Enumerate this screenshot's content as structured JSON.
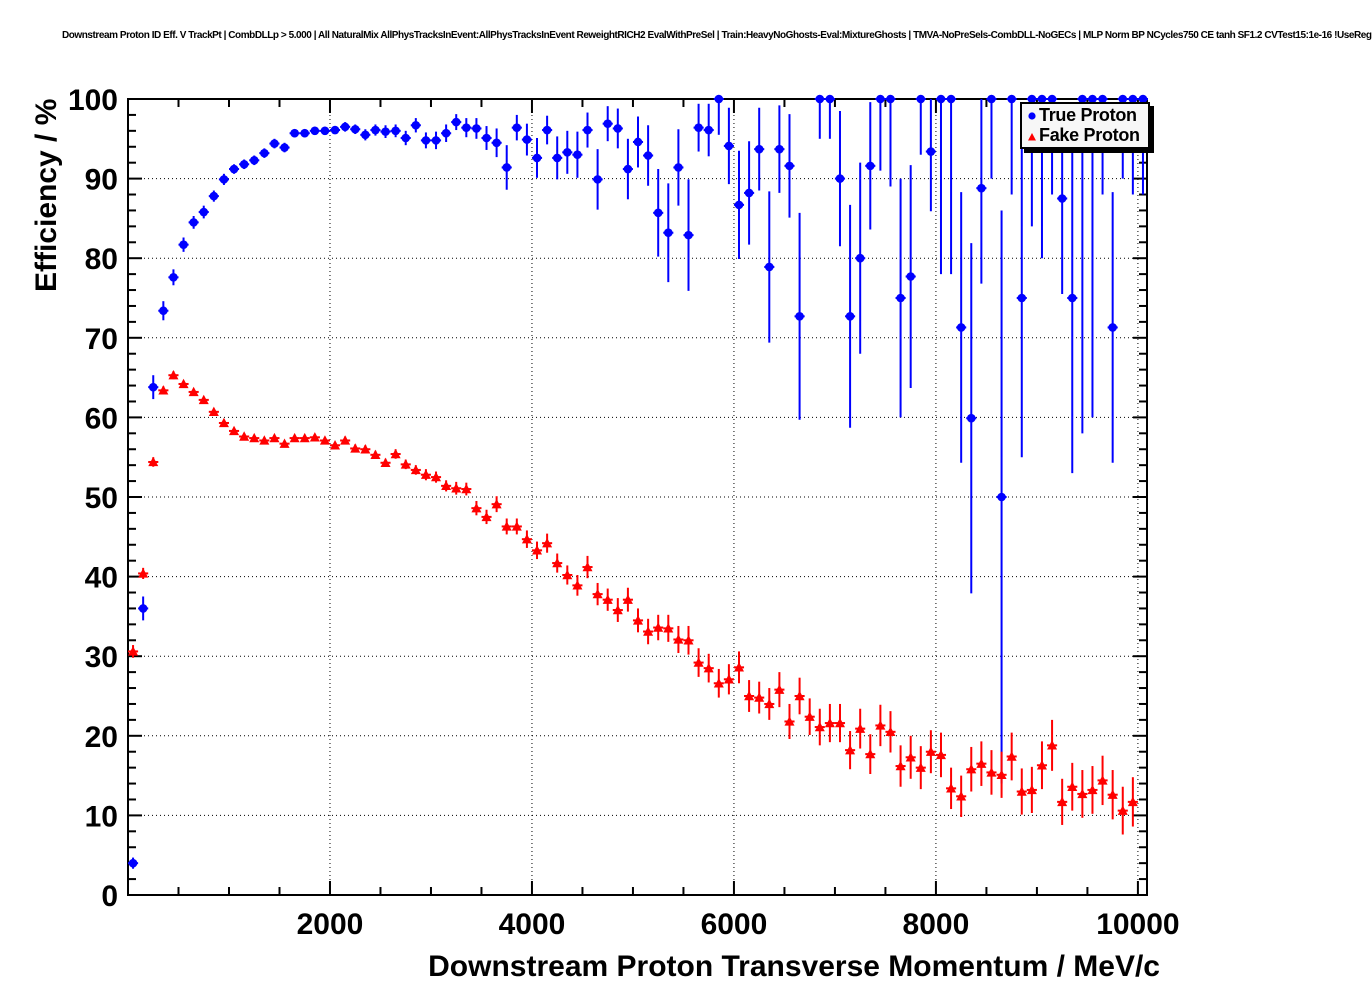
{
  "header": {
    "title": "Downstream Proton ID Eff. V TrackPt | CombDLLp > 5.000 | All NaturalMix AllPhysTracksInEvent:AllPhysTracksInEvent ReweightRICH2 EvalWithPreSel | Train:HeavyNoGhosts-Eval:MixtureGhosts | TMVA-NoPreSels-CombDLL-NoGECs | MLP Norm BP NCycles750 CE tanh SF1.2 CVTest15:1e-16 !UseReg"
  },
  "chart_data": {
    "type": "scatter",
    "title": "",
    "xlabel": "Downstream Proton Transverse Momentum / MeV/c",
    "ylabel": "Efficiency / %",
    "xlim": [
      0,
      10090
    ],
    "ylim": [
      0,
      100
    ],
    "x_major_ticks": [
      2000,
      4000,
      6000,
      8000,
      10000
    ],
    "x_minor_step": 500,
    "y_major_step": 10,
    "y_minor_step": 2,
    "grid": "dotted-black-on-major-ticks",
    "bin_halfwidth_mev": 50,
    "legend": {
      "position": "top-right",
      "entries": [
        {
          "label": "True Proton",
          "marker": "circle",
          "color": "#0000ff"
        },
        {
          "label": "Fake Proton",
          "marker": "triangle",
          "color": "#ff0000"
        }
      ]
    },
    "series": [
      {
        "name": "True Proton",
        "marker": "circle",
        "color": "#0000ff",
        "points_format": [
          "pt_mev",
          "efficiency_pct",
          "err_pct"
        ],
        "points": [
          [
            50,
            4.0,
            0.7
          ],
          [
            150,
            36.0,
            1.5
          ],
          [
            250,
            63.8,
            1.5
          ],
          [
            350,
            73.4,
            1.2
          ],
          [
            450,
            77.6,
            1.0
          ],
          [
            550,
            81.7,
            0.9
          ],
          [
            650,
            84.5,
            0.8
          ],
          [
            750,
            85.8,
            0.8
          ],
          [
            850,
            87.8,
            0.7
          ],
          [
            950,
            89.9,
            0.7
          ],
          [
            1050,
            91.2,
            0.6
          ],
          [
            1150,
            91.8,
            0.6
          ],
          [
            1250,
            92.3,
            0.6
          ],
          [
            1350,
            93.2,
            0.6
          ],
          [
            1450,
            94.4,
            0.6
          ],
          [
            1550,
            93.9,
            0.6
          ],
          [
            1650,
            95.7,
            0.5
          ],
          [
            1750,
            95.7,
            0.5
          ],
          [
            1850,
            96.0,
            0.5
          ],
          [
            1950,
            96.0,
            0.5
          ],
          [
            2050,
            96.1,
            0.5
          ],
          [
            2150,
            96.5,
            0.6
          ],
          [
            2250,
            96.2,
            0.6
          ],
          [
            2350,
            95.5,
            0.7
          ],
          [
            2450,
            96.1,
            0.7
          ],
          [
            2550,
            95.9,
            0.8
          ],
          [
            2650,
            96.0,
            0.8
          ],
          [
            2750,
            95.1,
            0.9
          ],
          [
            2850,
            96.7,
            0.9
          ],
          [
            2950,
            94.8,
            1.0
          ],
          [
            3050,
            94.8,
            1.1
          ],
          [
            3150,
            95.7,
            1.1
          ],
          [
            3250,
            97.1,
            1.0
          ],
          [
            3350,
            96.4,
            1.2
          ],
          [
            3450,
            96.3,
            1.3
          ],
          [
            3550,
            95.1,
            1.5
          ],
          [
            3650,
            94.5,
            1.8
          ],
          [
            3750,
            91.4,
            2.8
          ],
          [
            3850,
            96.4,
            1.6
          ],
          [
            3950,
            94.9,
            2.0
          ],
          [
            4050,
            92.6,
            2.5
          ],
          [
            4150,
            96.1,
            1.8
          ],
          [
            4250,
            92.6,
            2.7
          ],
          [
            4350,
            93.3,
            2.7
          ],
          [
            4450,
            93.0,
            2.9
          ],
          [
            4550,
            96.1,
            2.2
          ],
          [
            4650,
            89.9,
            3.8
          ],
          [
            4750,
            96.9,
            2.2
          ],
          [
            4850,
            96.3,
            2.5
          ],
          [
            4950,
            91.2,
            3.8
          ],
          [
            5050,
            94.6,
            3.2
          ],
          [
            5150,
            92.9,
            3.8
          ],
          [
            5250,
            85.7,
            5.5
          ],
          [
            5350,
            83.2,
            6.2
          ],
          [
            5450,
            91.4,
            4.8
          ],
          [
            5550,
            82.9,
            7.0
          ],
          [
            5650,
            96.4,
            3.0
          ],
          [
            5750,
            96.1,
            3.3
          ],
          [
            5850,
            100.0,
            4.5
          ],
          [
            5950,
            94.1,
            4.8
          ],
          [
            6050,
            86.7,
            6.8
          ],
          [
            6150,
            88.2,
            6.5
          ],
          [
            6250,
            93.7,
            5.2
          ],
          [
            6350,
            78.9,
            9.5
          ],
          [
            6450,
            93.7,
            5.5
          ],
          [
            6550,
            91.6,
            6.5
          ],
          [
            6650,
            72.7,
            13.0
          ],
          [
            6850,
            100.0,
            5.0
          ],
          [
            6950,
            100.0,
            5.0
          ],
          [
            7050,
            90.0,
            8.5
          ],
          [
            7150,
            72.7,
            14.0
          ],
          [
            7250,
            80.0,
            12.0
          ],
          [
            7350,
            91.6,
            8.0
          ],
          [
            7450,
            100.0,
            9.0
          ],
          [
            7550,
            100.0,
            11.0
          ],
          [
            7650,
            75.0,
            15.0
          ],
          [
            7750,
            77.7,
            14.0
          ],
          [
            7850,
            100.0,
            7.0
          ],
          [
            7950,
            93.4,
            7.5
          ],
          [
            8050,
            100.0,
            22.0
          ],
          [
            8150,
            100.0,
            22.0
          ],
          [
            8250,
            71.3,
            17.0
          ],
          [
            8350,
            59.9,
            22.0
          ],
          [
            8450,
            88.8,
            12.0
          ],
          [
            8550,
            100.0,
            10.0
          ],
          [
            8650,
            50.0,
            36.0
          ],
          [
            8750,
            100.0,
            12.0
          ],
          [
            8850,
            75.0,
            20.0
          ],
          [
            8950,
            100.0,
            16.0
          ],
          [
            9050,
            100.0,
            20.0
          ],
          [
            9150,
            100.0,
            12.0
          ],
          [
            9250,
            87.5,
            12.0
          ],
          [
            9350,
            75.0,
            22.0
          ],
          [
            9450,
            100.0,
            42.0
          ],
          [
            9550,
            100.0,
            40.0
          ],
          [
            9650,
            100.0,
            12.0
          ],
          [
            9750,
            71.3,
            17.0
          ],
          [
            9850,
            100.0,
            10.0
          ],
          [
            9950,
            100.0,
            12.0
          ],
          [
            10050,
            100.0,
            12.0
          ]
        ]
      },
      {
        "name": "Fake Proton",
        "marker": "triangle",
        "color": "#ff0000",
        "points_format": [
          "pt_mev",
          "efficiency_pct",
          "err_pct"
        ],
        "points": [
          [
            50,
            30.6,
            0.8
          ],
          [
            150,
            40.4,
            0.7
          ],
          [
            250,
            54.4,
            0.6
          ],
          [
            350,
            63.4,
            0.5
          ],
          [
            450,
            65.3,
            0.5
          ],
          [
            550,
            64.2,
            0.4
          ],
          [
            650,
            63.2,
            0.4
          ],
          [
            750,
            62.2,
            0.4
          ],
          [
            850,
            60.7,
            0.4
          ],
          [
            950,
            59.3,
            0.4
          ],
          [
            1050,
            58.3,
            0.4
          ],
          [
            1150,
            57.6,
            0.4
          ],
          [
            1250,
            57.4,
            0.4
          ],
          [
            1350,
            57.1,
            0.4
          ],
          [
            1450,
            57.4,
            0.4
          ],
          [
            1550,
            56.7,
            0.4
          ],
          [
            1650,
            57.4,
            0.4
          ],
          [
            1750,
            57.4,
            0.4
          ],
          [
            1850,
            57.5,
            0.4
          ],
          [
            1950,
            57.1,
            0.4
          ],
          [
            2050,
            56.5,
            0.4
          ],
          [
            2150,
            57.1,
            0.5
          ],
          [
            2250,
            56.1,
            0.5
          ],
          [
            2350,
            56.0,
            0.5
          ],
          [
            2450,
            55.3,
            0.5
          ],
          [
            2550,
            54.3,
            0.5
          ],
          [
            2650,
            55.4,
            0.6
          ],
          [
            2750,
            54.1,
            0.6
          ],
          [
            2850,
            53.4,
            0.6
          ],
          [
            2950,
            52.8,
            0.7
          ],
          [
            3050,
            52.5,
            0.7
          ],
          [
            3150,
            51.4,
            0.7
          ],
          [
            3250,
            51.1,
            0.8
          ],
          [
            3350,
            51.0,
            0.8
          ],
          [
            3450,
            48.6,
            0.9
          ],
          [
            3550,
            47.5,
            0.9
          ],
          [
            3650,
            49.1,
            1.0
          ],
          [
            3750,
            46.3,
            1.0
          ],
          [
            3850,
            46.3,
            1.0
          ],
          [
            3950,
            44.7,
            1.1
          ],
          [
            4050,
            43.3,
            1.1
          ],
          [
            4150,
            44.2,
            1.2
          ],
          [
            4250,
            41.7,
            1.2
          ],
          [
            4350,
            40.2,
            1.2
          ],
          [
            4450,
            38.9,
            1.3
          ],
          [
            4550,
            41.2,
            1.4
          ],
          [
            4650,
            37.8,
            1.4
          ],
          [
            4750,
            37.1,
            1.4
          ],
          [
            4850,
            35.8,
            1.5
          ],
          [
            4950,
            37.1,
            1.5
          ],
          [
            5050,
            34.5,
            1.5
          ],
          [
            5150,
            33.1,
            1.6
          ],
          [
            5250,
            33.6,
            1.6
          ],
          [
            5350,
            33.5,
            1.7
          ],
          [
            5450,
            32.1,
            1.7
          ],
          [
            5550,
            32.0,
            1.8
          ],
          [
            5650,
            29.2,
            1.8
          ],
          [
            5750,
            28.5,
            1.8
          ],
          [
            5850,
            26.6,
            1.8
          ],
          [
            5950,
            27.1,
            1.9
          ],
          [
            6050,
            28.6,
            2.0
          ],
          [
            6150,
            25.0,
            2.0
          ],
          [
            6250,
            24.8,
            2.0
          ],
          [
            6350,
            24.0,
            2.0
          ],
          [
            6450,
            25.8,
            2.2
          ],
          [
            6550,
            21.8,
            2.2
          ],
          [
            6650,
            25.0,
            2.3
          ],
          [
            6750,
            22.4,
            2.3
          ],
          [
            6850,
            21.1,
            2.3
          ],
          [
            6950,
            21.6,
            2.4
          ],
          [
            7050,
            21.6,
            2.4
          ],
          [
            7150,
            18.2,
            2.4
          ],
          [
            7250,
            20.9,
            2.5
          ],
          [
            7350,
            17.7,
            2.5
          ],
          [
            7450,
            21.3,
            2.6
          ],
          [
            7550,
            20.5,
            2.6
          ],
          [
            7650,
            16.2,
            2.6
          ],
          [
            7750,
            17.3,
            2.7
          ],
          [
            7850,
            16.0,
            2.7
          ],
          [
            7950,
            18.0,
            2.7
          ],
          [
            8050,
            17.6,
            2.8
          ],
          [
            8150,
            13.4,
            2.6
          ],
          [
            8250,
            12.4,
            2.6
          ],
          [
            8350,
            15.8,
            2.8
          ],
          [
            8450,
            16.5,
            2.8
          ],
          [
            8550,
            15.4,
            2.8
          ],
          [
            8650,
            15.1,
            2.9
          ],
          [
            8750,
            17.4,
            3.0
          ],
          [
            8850,
            13.0,
            2.9
          ],
          [
            8950,
            13.2,
            2.9
          ],
          [
            9050,
            16.3,
            3.0
          ],
          [
            9150,
            18.8,
            3.2
          ],
          [
            9250,
            11.7,
            2.9
          ],
          [
            9350,
            13.6,
            3.0
          ],
          [
            9450,
            12.7,
            3.0
          ],
          [
            9550,
            13.2,
            3.0
          ],
          [
            9650,
            14.4,
            3.1
          ],
          [
            9750,
            12.6,
            3.1
          ],
          [
            9850,
            10.6,
            3.0
          ],
          [
            9950,
            11.7,
            3.1
          ]
        ]
      }
    ]
  }
}
